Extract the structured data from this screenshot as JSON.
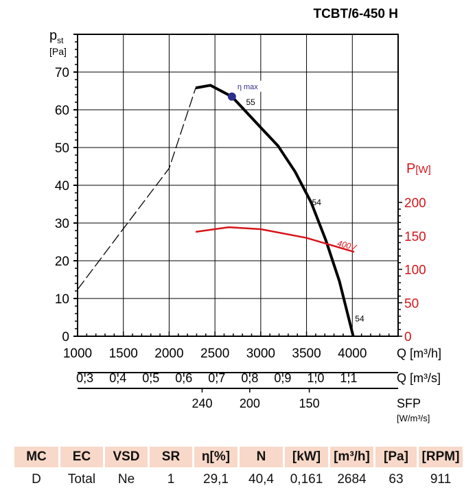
{
  "chart_data": {
    "type": "line",
    "title": "TCBT/6-450 H",
    "ylabel": "pst [Pa]",
    "ylabel_main": "p",
    "ylabel_sub": "st",
    "ylabel_unit": "[Pa]",
    "y2label": "P",
    "y2label_unit": "[W]",
    "xlabel": "Q [m³/h]",
    "xlim": [
      1000,
      4500
    ],
    "ylim": [
      0,
      80
    ],
    "y2lim": [
      0,
      200
    ],
    "x_ticks": [
      "1000",
      "1500",
      "2000",
      "2500",
      "3000",
      "3500",
      "4000"
    ],
    "y_ticks": [
      "0",
      "10",
      "20",
      "30",
      "40",
      "50",
      "60",
      "70"
    ],
    "y2_ticks": [
      "0",
      "50",
      "100",
      "150",
      "200"
    ],
    "x2_label": "Q [m³/s]",
    "x2_ticks": [
      {
        "v": 0.3,
        "label": "0,3"
      },
      {
        "v": 0.4,
        "label": "0,4"
      },
      {
        "v": 0.5,
        "label": "0,5"
      },
      {
        "v": 0.6,
        "label": "0,6"
      },
      {
        "v": 0.7,
        "label": "0,7"
      },
      {
        "v": 0.8,
        "label": "0,8"
      },
      {
        "v": 0.9,
        "label": "0,9"
      },
      {
        "v": 1.0,
        "label": "1,0"
      },
      {
        "v": 1.1,
        "label": "1,1"
      }
    ],
    "sfp_label": "SFP",
    "sfp_unit": "[W/m³/s]",
    "sfp_ticks": [
      {
        "q": 2360,
        "label": "240"
      },
      {
        "q": 2880,
        "label": "200"
      },
      {
        "q": 3530,
        "label": "150"
      }
    ],
    "series": [
      {
        "name": "pressure",
        "x": [
          2290,
          2450,
          2685,
          3000,
          3190,
          3375,
          3550,
          3710,
          3860,
          4010
        ],
        "y": [
          65.8,
          66.5,
          63.5,
          55.3,
          50.4,
          43.6,
          35.5,
          25.5,
          14.5,
          0
        ]
      },
      {
        "name": "pressure-unstable",
        "x": [
          1000,
          1500,
          2000,
          2290
        ],
        "y": [
          12.4,
          28.5,
          44.5,
          65.8
        ]
      },
      {
        "name": "400V",
        "axis": "y2",
        "x": [
          2290,
          2650,
          3000,
          3500,
          4020
        ],
        "y": [
          156,
          163,
          160,
          147,
          126
        ]
      }
    ],
    "annotations": [
      {
        "text": "η max",
        "x": 2685,
        "y": 63.5
      },
      {
        "text": "55",
        "x": 2840,
        "y": 62
      },
      {
        "text": "54",
        "x": 3560,
        "y": 35.5
      },
      {
        "text": "54",
        "x": 4030,
        "y": 2.5
      },
      {
        "text": "400V",
        "x": 3830,
        "y": 24
      }
    ]
  },
  "table": {
    "headers": [
      "MC",
      "EC",
      "VSD",
      "SR",
      "η[%]",
      "N",
      "[kW]",
      "[m³/h]",
      "[Pa]",
      "[RPM]"
    ],
    "values": [
      "D",
      "Total",
      "Ne",
      "1",
      "29,1",
      "40,4",
      "0,161",
      "2684",
      "63",
      "911"
    ]
  },
  "colors": {
    "red": "#d7141a",
    "navy": "#2e2e8c",
    "header": "#f8d8c8"
  }
}
